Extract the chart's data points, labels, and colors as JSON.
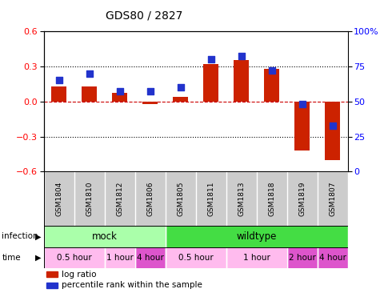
{
  "title": "GDS80 / 2827",
  "samples": [
    "GSM1804",
    "GSM1810",
    "GSM1812",
    "GSM1806",
    "GSM1805",
    "GSM1811",
    "GSM1813",
    "GSM1818",
    "GSM1819",
    "GSM1807"
  ],
  "log_ratios": [
    0.13,
    0.13,
    0.07,
    -0.02,
    0.04,
    0.32,
    0.35,
    0.28,
    -0.42,
    -0.5
  ],
  "percentile_ranks": [
    65,
    70,
    57,
    57,
    60,
    80,
    82,
    72,
    48,
    33
  ],
  "ylim_left": [
    -0.6,
    0.6
  ],
  "ylim_right": [
    0,
    100
  ],
  "yticks_left": [
    -0.6,
    -0.3,
    0.0,
    0.3,
    0.6
  ],
  "yticks_right": [
    0,
    25,
    50,
    75,
    100
  ],
  "bar_color": "#cc2200",
  "dot_color": "#2233cc",
  "zero_line_color": "#cc0000",
  "infection_groups": [
    {
      "label": "mock",
      "start": 0,
      "end": 4,
      "color": "#aaffaa"
    },
    {
      "label": "wildtype",
      "start": 4,
      "end": 10,
      "color": "#44dd44"
    }
  ],
  "time_groups": [
    {
      "label": "0.5 hour",
      "start": 0,
      "end": 2,
      "color": "#ffbbee"
    },
    {
      "label": "1 hour",
      "start": 2,
      "end": 3,
      "color": "#ffbbee"
    },
    {
      "label": "4 hour",
      "start": 3,
      "end": 4,
      "color": "#dd55cc"
    },
    {
      "label": "0.5 hour",
      "start": 4,
      "end": 6,
      "color": "#ffbbee"
    },
    {
      "label": "1 hour",
      "start": 6,
      "end": 8,
      "color": "#ffbbee"
    },
    {
      "label": "2 hour",
      "start": 8,
      "end": 9,
      "color": "#dd55cc"
    },
    {
      "label": "4 hour",
      "start": 9,
      "end": 10,
      "color": "#dd55cc"
    }
  ],
  "legend_items": [
    {
      "label": "log ratio",
      "color": "#cc2200"
    },
    {
      "label": "percentile rank within the sample",
      "color": "#2233cc"
    }
  ],
  "sample_bg": "#cccccc"
}
